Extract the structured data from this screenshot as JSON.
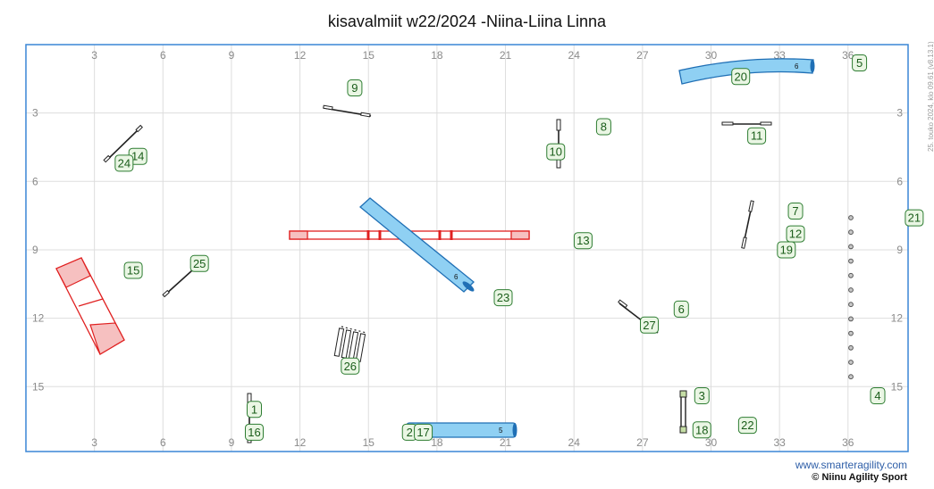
{
  "title": "kisavalmiit w22/2024 -Niina-Liina Linna",
  "footer": {
    "site": "www.smarteragility.com",
    "copyright": "© Niinu Agility Sport"
  },
  "side_note": "25. touko 2024, klo 09.61  (v8.13.1)",
  "colors": {
    "frame": "#3a86d6",
    "grid": "#dddddd",
    "tunnel_fill": "#8fd0f3",
    "tunnel_stroke": "#1f6fb5",
    "contact_red": "#e02020",
    "number_fill": "#eaf6e4",
    "number_stroke": "#2e7d32",
    "number_text": "#1a5d1a"
  },
  "axes": {
    "x_ticks": [
      "3",
      "6",
      "9",
      "12",
      "15",
      "18",
      "21",
      "24",
      "27",
      "30",
      "33",
      "36"
    ],
    "y_ticks": [
      "3",
      "6",
      "9",
      "12",
      "15"
    ],
    "width_m": 38.5,
    "height_m": 17.5
  },
  "numbers": [
    {
      "text": "1",
      "x": 10,
      "y": 16
    },
    {
      "text": "16",
      "x": 10,
      "y": 17
    },
    {
      "text": "2",
      "x": 16.8,
      "y": 17
    },
    {
      "text": "17",
      "x": 17.4,
      "y": 17
    },
    {
      "text": "3",
      "x": 29.6,
      "y": 15.4
    },
    {
      "text": "18",
      "x": 29.6,
      "y": 16.9
    },
    {
      "text": "22",
      "x": 31.6,
      "y": 16.7
    },
    {
      "text": "4",
      "x": 37.3,
      "y": 15.4
    },
    {
      "text": "5",
      "x": 36.5,
      "y": 0.8
    },
    {
      "text": "20",
      "x": 31.3,
      "y": 1.4
    },
    {
      "text": "6",
      "x": 28.7,
      "y": 11.6
    },
    {
      "text": "27",
      "x": 27.3,
      "y": 12.3
    },
    {
      "text": "7",
      "x": 33.7,
      "y": 7.3
    },
    {
      "text": "12",
      "x": 33.7,
      "y": 8.3
    },
    {
      "text": "19",
      "x": 33.3,
      "y": 9
    },
    {
      "text": "8",
      "x": 25.3,
      "y": 3.6
    },
    {
      "text": "10",
      "x": 23.2,
      "y": 4.7
    },
    {
      "text": "9",
      "x": 14.4,
      "y": 1.9
    },
    {
      "text": "11",
      "x": 32,
      "y": 4
    },
    {
      "text": "13",
      "x": 24.4,
      "y": 8.6
    },
    {
      "text": "14",
      "x": 4.9,
      "y": 4.9
    },
    {
      "text": "24",
      "x": 4.3,
      "y": 5.2
    },
    {
      "text": "15",
      "x": 4.7,
      "y": 9.9
    },
    {
      "text": "21",
      "x": 38.9,
      "y": 7.6
    },
    {
      "text": "23",
      "x": 20.9,
      "y": 11.1
    },
    {
      "text": "25",
      "x": 7.6,
      "y": 9.6
    },
    {
      "text": "26",
      "x": 14.2,
      "y": 14.1
    }
  ],
  "tunnel_labels": [
    "6",
    "5",
    "6"
  ]
}
